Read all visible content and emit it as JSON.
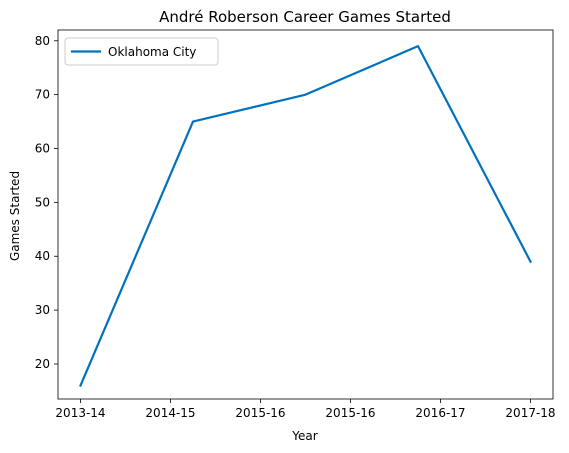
{
  "chart_data": {
    "type": "line",
    "title": "André Roberson Career Games Started",
    "xlabel": "Year",
    "ylabel": "Games Started",
    "categories": [
      "2013-14",
      "2014-15",
      "2015-16",
      "2015-16",
      "2016-17",
      "2017-18"
    ],
    "series": [
      {
        "name": "Oklahoma City",
        "values": [
          16,
          65,
          70,
          79,
          39
        ],
        "x": [
          0,
          1.25,
          2.5,
          3.75,
          5
        ],
        "color": "#0072bd"
      }
    ],
    "x_ticks": [
      0,
      1,
      2,
      3,
      4,
      5
    ],
    "ylim": [
      13.5,
      82
    ],
    "y_ticks": [
      20,
      30,
      40,
      50,
      60,
      70,
      80
    ],
    "xlim": [
      -0.25,
      5.25
    ],
    "grid": false,
    "legend": "top-left"
  }
}
